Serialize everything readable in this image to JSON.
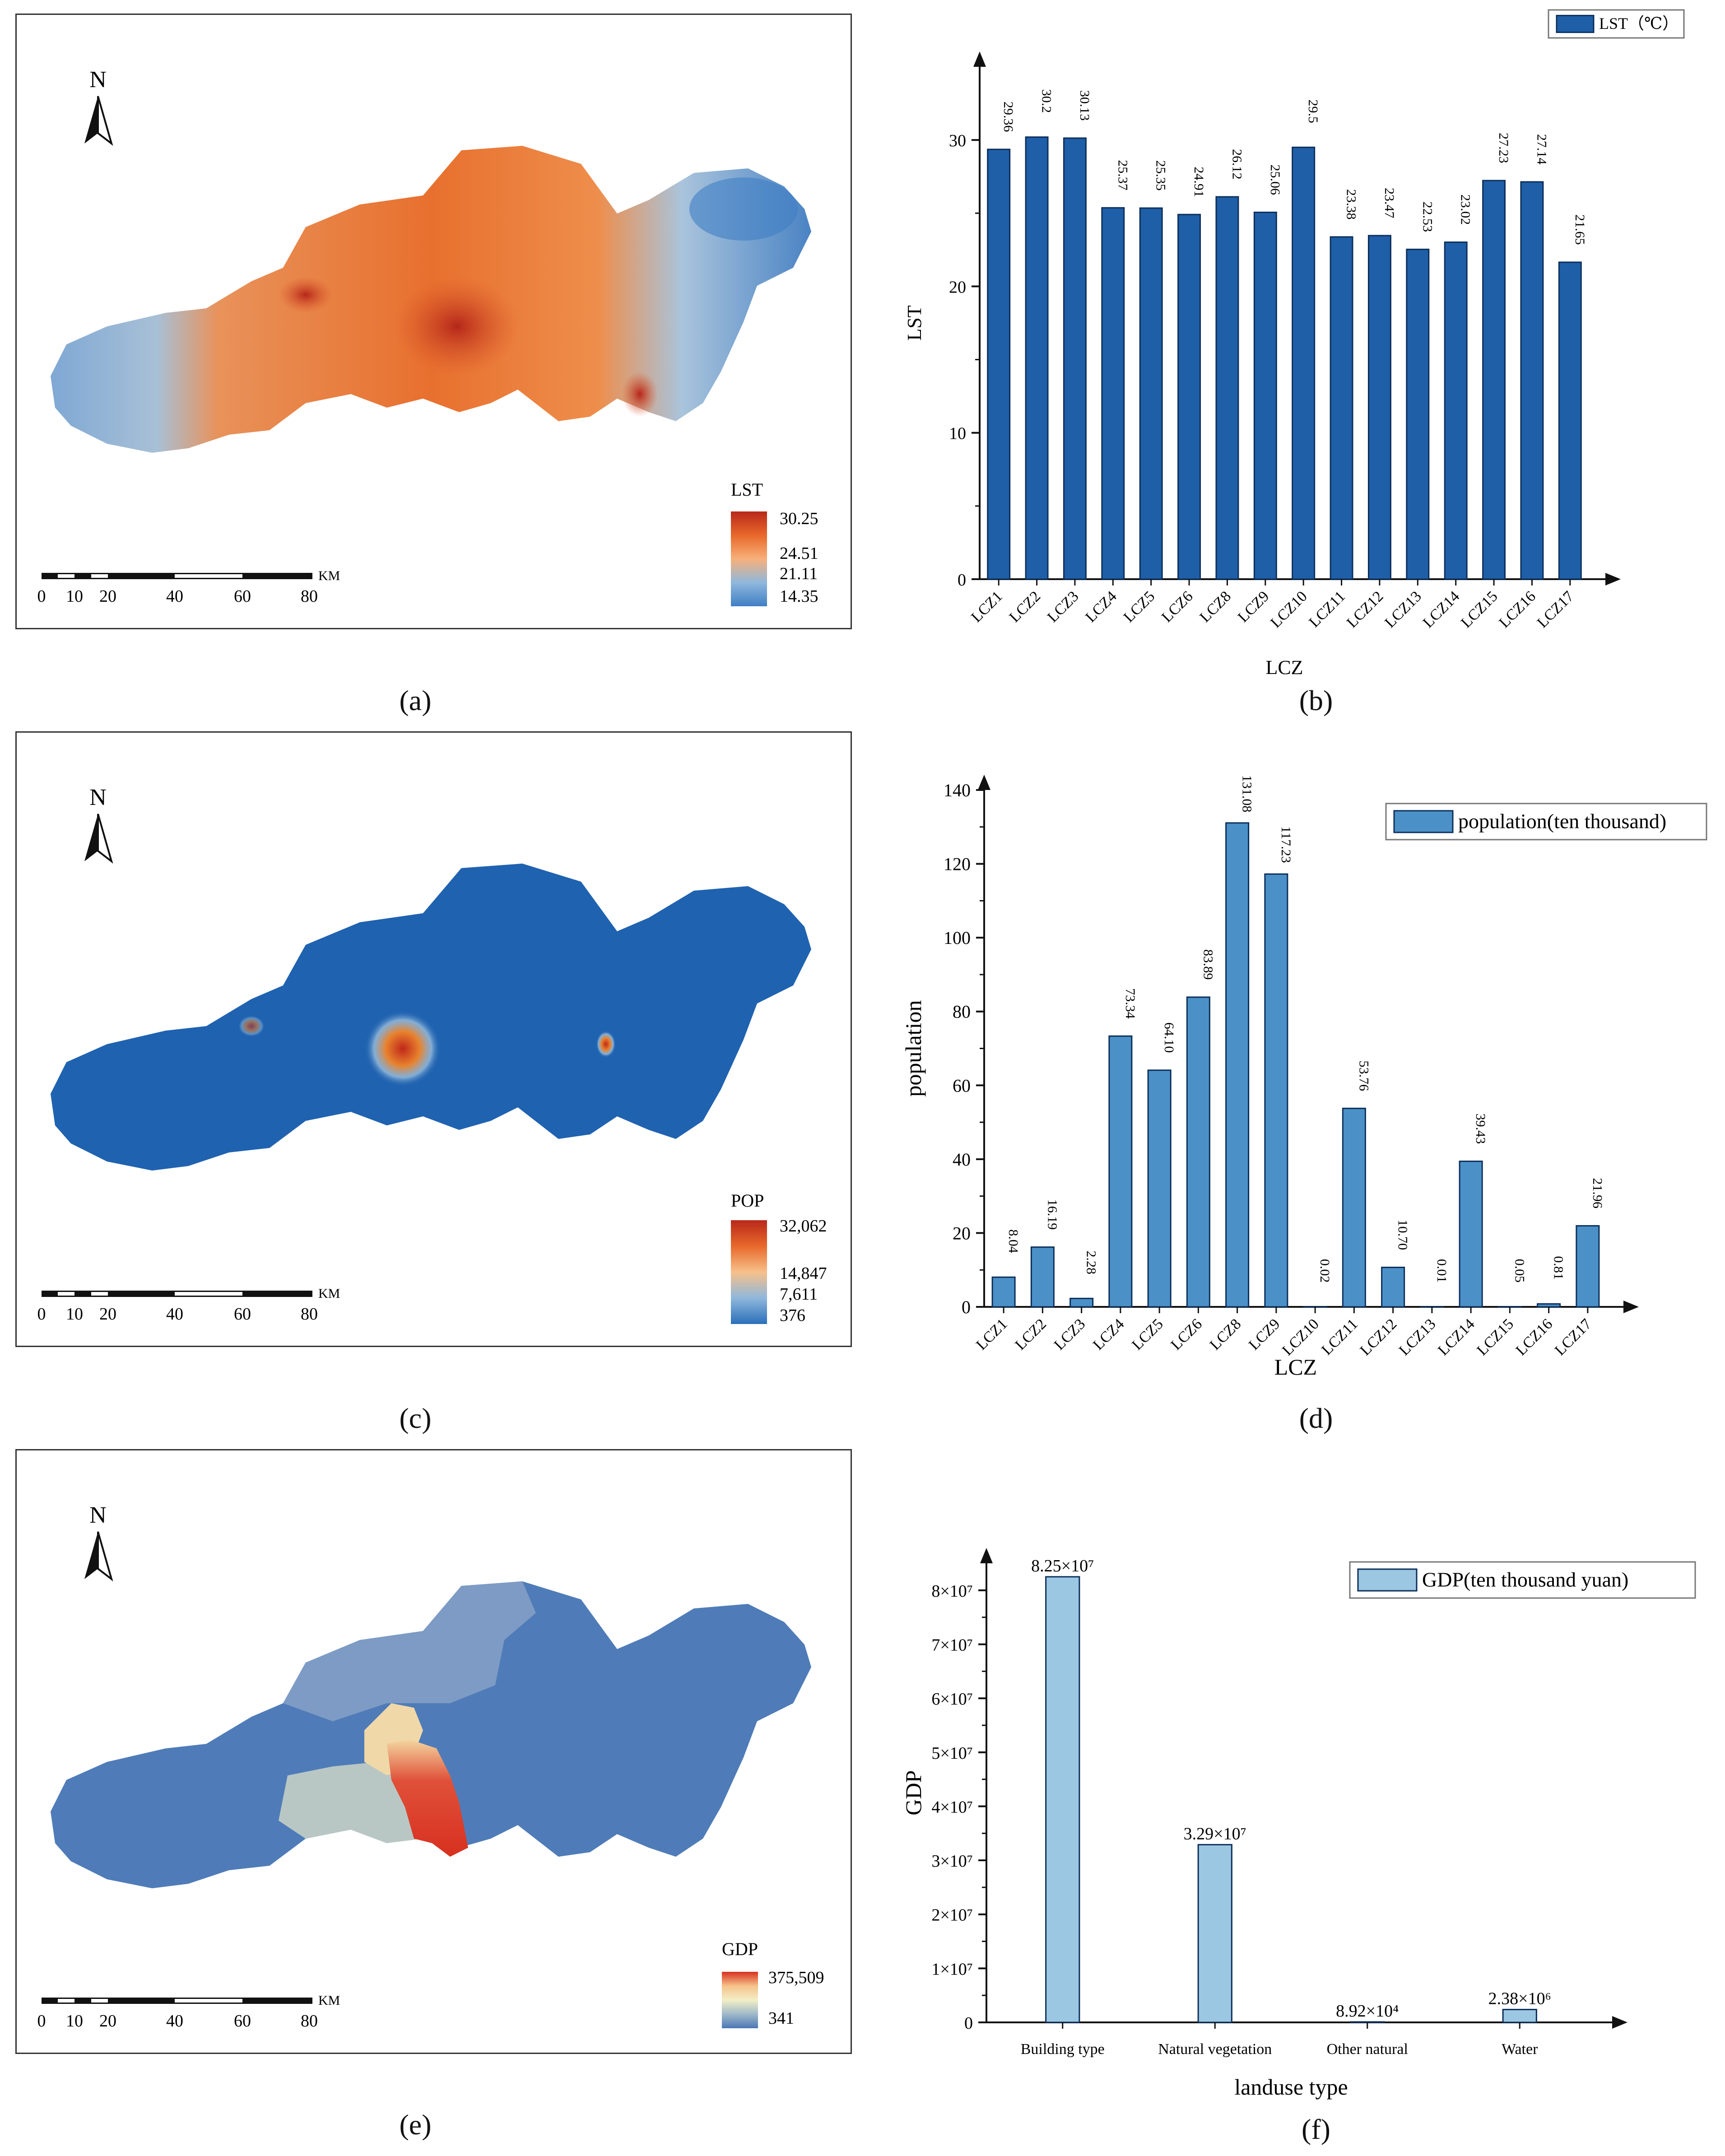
{
  "panels": {
    "a": {
      "caption": "(a)",
      "north": "N",
      "legend_title": "LST",
      "legend_values": [
        "30.25",
        "24.51",
        "21.11",
        "14.35"
      ],
      "legend_colors": [
        "#b8281a",
        "#e8682a",
        "#f7b07a",
        "#8fb8dc",
        "#3f7fc4"
      ],
      "scale_unit": "KM",
      "scale_ticks": [
        "0",
        "10",
        "20",
        "40",
        "60",
        "80"
      ]
    },
    "c": {
      "caption": "(c)",
      "north": "N",
      "legend_title": "POP",
      "legend_values": [
        "32,062",
        "14,847",
        "7,611",
        "376"
      ],
      "legend_colors": [
        "#b8281a",
        "#e8682a",
        "#f7c08a",
        "#8fb8dc",
        "#2a6fba"
      ],
      "scale_unit": "KM",
      "scale_ticks": [
        "0",
        "10",
        "20",
        "40",
        "60",
        "80"
      ]
    },
    "e": {
      "caption": "(e)",
      "north": "N",
      "legend_title": "GDP",
      "legend_values": [
        "375,509",
        "341"
      ],
      "legend_colors": [
        "#d7301f",
        "#f6c28a",
        "#f3eec6",
        "#9fb9c9",
        "#4a78b5"
      ],
      "scale_unit": "KM",
      "scale_ticks": [
        "0",
        "10",
        "20",
        "40",
        "60",
        "80"
      ]
    },
    "b": {
      "caption": "(b)"
    },
    "d": {
      "caption": "(d)"
    },
    "f": {
      "caption": "(f)"
    }
  },
  "chart_data": [
    {
      "id": "b",
      "type": "bar",
      "ylabel": "LST",
      "xlabel": "LCZ",
      "ylim": [
        0,
        35
      ],
      "yticks": [
        0,
        10,
        20,
        30
      ],
      "categories": [
        "LCZ1",
        "LCZ2",
        "LCZ3",
        "LCZ4",
        "LCZ5",
        "LCZ6",
        "LCZ8",
        "LCZ9",
        "LCZ10",
        "LCZ11",
        "LCZ12",
        "LCZ13",
        "LCZ14",
        "LCZ15",
        "LCZ16",
        "LCZ17"
      ],
      "values": [
        29.36,
        30.2,
        30.13,
        25.37,
        25.35,
        24.91,
        26.12,
        25.06,
        29.5,
        23.38,
        23.47,
        22.53,
        23.02,
        27.23,
        27.14,
        21.65
      ],
      "labels": [
        "29.36",
        "30.2",
        "30.13",
        "25.37",
        "25.35",
        "24.91",
        "26.12",
        "25.06",
        "29.5",
        "23.38",
        "23.47",
        "22.53",
        "23.02",
        "27.23",
        "27.14",
        "21.65"
      ],
      "series_name": "LST（℃）",
      "color": "#1f5fa8",
      "legend": "top-right"
    },
    {
      "id": "d",
      "type": "bar",
      "ylabel": "population",
      "xlabel": "LCZ",
      "ylim": [
        0,
        140
      ],
      "yticks": [
        0,
        20,
        40,
        60,
        80,
        100,
        120,
        140
      ],
      "categories": [
        "LCZ1",
        "LCZ2",
        "LCZ3",
        "LCZ4",
        "LCZ5",
        "LCZ6",
        "LCZ8",
        "LCZ9",
        "LCZ10",
        "LCZ11",
        "LCZ12",
        "LCZ13",
        "LCZ14",
        "LCZ15",
        "LCZ16",
        "LCZ17"
      ],
      "values": [
        8.04,
        16.19,
        2.28,
        73.34,
        64.1,
        83.89,
        131.08,
        117.23,
        0.02,
        53.76,
        10.7,
        0.01,
        39.43,
        0.05,
        0.81,
        21.96
      ],
      "labels": [
        "8.04",
        "16.19",
        "2.28",
        "73.34",
        "64.10",
        "83.89",
        "131.08",
        "117.23",
        "0.02",
        "53.76",
        "10.70",
        "0.01",
        "39.43",
        "0.05",
        "0.81",
        "21.96"
      ],
      "series_name": "population(ten thousand)",
      "color": "#4b91c8",
      "legend": "top-right"
    },
    {
      "id": "f",
      "type": "bar",
      "ylabel": "GDP",
      "xlabel": "landuse type",
      "ylim": [
        0,
        85000000
      ],
      "yticks": [
        0,
        10000000,
        20000000,
        30000000,
        40000000,
        50000000,
        60000000,
        70000000,
        80000000
      ],
      "ytick_labels": [
        "0",
        "1×10⁷",
        "2×10⁷",
        "3×10⁷",
        "4×10⁷",
        "5×10⁷",
        "6×10⁷",
        "7×10⁷",
        "8×10⁷"
      ],
      "categories": [
        "Building type",
        "Natural vegetation",
        "Other natural",
        "Water"
      ],
      "values": [
        82500000,
        32900000,
        89200,
        2380000
      ],
      "labels": [
        "8.25×10⁷",
        "3.29×10⁷",
        "8.92×10⁴",
        "2.38×10⁶"
      ],
      "series_name": "GDP(ten thousand yuan)",
      "color": "#9cc7e2",
      "legend": "top-right"
    }
  ]
}
